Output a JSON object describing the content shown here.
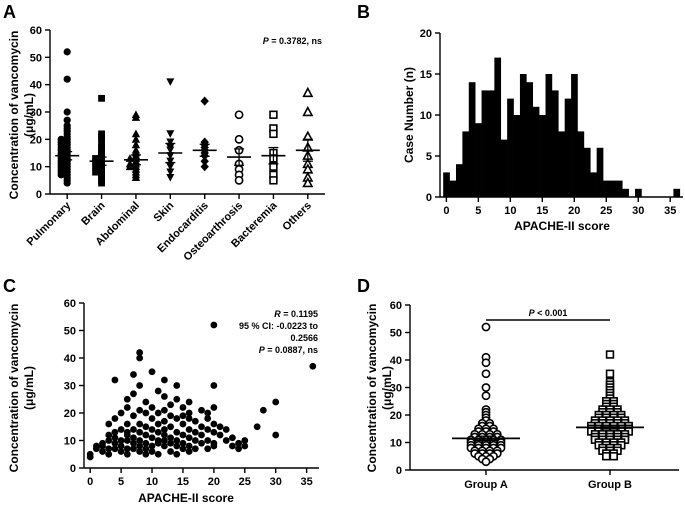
{
  "panel_letters": {
    "a": "A",
    "b": "B",
    "c": "C",
    "d": "D"
  },
  "chart_data": [
    {
      "panel": "A",
      "type": "scatter",
      "subtype": "dot-plot-with-mean-and-sem",
      "ylabel_line1": "Concentration of vancomycin",
      "ylabel_line2": "(μg/mL)",
      "ylim": [
        0,
        60
      ],
      "yticks": [
        0,
        10,
        20,
        30,
        40,
        50,
        60
      ],
      "stat_p": "P",
      "stat_rest": " = 0.3782, ns",
      "categories": [
        "Pulmonary",
        "Brain",
        "Abdominal",
        "Skin",
        "Endocarditis",
        "Osteoarthrosis",
        "Bacteremia",
        "Others"
      ],
      "markers": [
        "circle",
        "square",
        "triangle-up",
        "triangle-down",
        "diamond",
        "circle-open",
        "square-open",
        "triangle-open"
      ],
      "means": [
        14,
        12,
        12.5,
        15,
        16,
        13.5,
        14,
        16
      ],
      "sem": [
        1.5,
        1.5,
        1.8,
        3.5,
        2.2,
        3,
        3,
        4
      ],
      "points": [
        [
          52,
          42,
          30,
          27,
          25,
          24,
          23,
          22,
          21,
          20,
          20,
          19,
          19,
          18,
          18,
          17,
          17,
          16,
          16,
          15,
          15,
          14,
          14,
          13,
          13,
          12,
          12,
          11,
          11,
          10,
          10,
          9,
          9,
          8,
          8,
          7,
          7,
          6,
          5,
          4
        ],
        [
          35,
          22,
          21,
          20,
          18,
          17,
          16,
          15,
          14,
          13,
          13,
          12,
          12,
          11,
          10,
          10,
          9,
          8,
          8,
          7,
          6,
          5,
          4
        ],
        [
          29,
          28,
          22,
          20,
          18,
          16,
          15,
          14,
          13,
          13,
          12,
          11,
          11,
          10,
          10,
          9,
          8,
          7,
          6
        ],
        [
          41,
          22,
          19,
          17,
          16,
          14,
          12,
          10,
          8,
          6
        ],
        [
          34,
          19,
          18,
          17,
          16,
          15,
          14,
          12,
          10
        ],
        [
          29,
          20,
          16,
          11,
          9,
          7,
          5
        ],
        [
          29,
          24,
          22,
          15,
          13,
          10,
          7,
          5
        ],
        [
          37,
          30,
          21,
          17,
          14,
          11,
          9,
          6,
          4
        ]
      ]
    },
    {
      "panel": "B",
      "type": "bar",
      "subtype": "histogram",
      "xlabel": "APACHE-II score",
      "ylabel": "Case Number (n)",
      "xlim": [
        -1,
        37
      ],
      "ylim": [
        0,
        20
      ],
      "xticks": [
        0,
        5,
        10,
        15,
        20,
        25,
        30,
        35
      ],
      "yticks": [
        0,
        5,
        10,
        15,
        20
      ],
      "bins": [
        0,
        1,
        2,
        3,
        4,
        5,
        6,
        7,
        8,
        9,
        10,
        11,
        12,
        13,
        14,
        15,
        16,
        17,
        18,
        19,
        20,
        21,
        22,
        23,
        24,
        25,
        26,
        27,
        28,
        29,
        30,
        31,
        32,
        33,
        34,
        35,
        36
      ],
      "values": [
        3,
        2,
        4,
        8,
        14,
        9,
        13,
        13,
        17,
        7,
        12,
        10,
        15,
        14,
        11,
        10,
        15,
        13,
        8,
        12,
        15,
        8,
        6,
        3,
        6,
        2,
        2,
        2,
        1,
        0,
        1,
        0,
        0,
        0,
        0,
        0,
        1
      ]
    },
    {
      "panel": "C",
      "type": "scatter",
      "xlabel": "APACHE-II score",
      "ylabel_line1": "Concentration of vancomycin",
      "ylabel_line2": "(μg/mL)",
      "xlim": [
        -1,
        37
      ],
      "ylim": [
        0,
        60
      ],
      "xticks": [
        0,
        5,
        10,
        15,
        20,
        25,
        30,
        35
      ],
      "yticks": [
        0,
        10,
        20,
        30,
        40,
        50,
        60
      ],
      "stat_lines": [
        {
          "italic": "R",
          "rest": " = 0.1195"
        },
        {
          "italic": "",
          "rest": "95 % CI: -0.0223 to"
        },
        {
          "italic": "",
          "rest": "0.2566"
        },
        {
          "italic": "P",
          "rest": " = 0.0887, ns"
        }
      ],
      "points": [
        [
          0,
          5
        ],
        [
          0,
          4
        ],
        [
          1,
          7
        ],
        [
          1,
          8
        ],
        [
          2,
          6
        ],
        [
          2,
          9
        ],
        [
          2,
          8
        ],
        [
          3,
          10
        ],
        [
          3,
          7
        ],
        [
          3,
          12
        ],
        [
          3,
          16
        ],
        [
          3,
          5
        ],
        [
          4,
          32
        ],
        [
          4,
          9
        ],
        [
          4,
          11
        ],
        [
          4,
          13
        ],
        [
          4,
          7
        ],
        [
          4,
          18
        ],
        [
          5,
          10
        ],
        [
          5,
          6
        ],
        [
          5,
          14
        ],
        [
          5,
          20
        ],
        [
          5,
          8
        ],
        [
          6,
          22
        ],
        [
          6,
          10
        ],
        [
          6,
          12
        ],
        [
          6,
          7
        ],
        [
          6,
          16
        ],
        [
          6,
          25
        ],
        [
          6,
          5
        ],
        [
          6,
          13
        ],
        [
          7,
          34
        ],
        [
          7,
          9
        ],
        [
          7,
          11
        ],
        [
          7,
          19
        ],
        [
          7,
          7
        ],
        [
          7,
          14
        ],
        [
          7,
          27
        ],
        [
          8,
          42
        ],
        [
          8,
          40
        ],
        [
          8,
          10
        ],
        [
          8,
          13
        ],
        [
          8,
          21
        ],
        [
          8,
          6
        ],
        [
          8,
          16
        ],
        [
          8,
          8
        ],
        [
          8,
          30
        ],
        [
          9,
          20
        ],
        [
          9,
          9
        ],
        [
          9,
          12
        ],
        [
          9,
          15
        ],
        [
          9,
          7
        ],
        [
          9,
          24
        ],
        [
          9,
          5
        ],
        [
          10,
          35
        ],
        [
          10,
          18
        ],
        [
          10,
          11
        ],
        [
          10,
          8
        ],
        [
          10,
          14
        ],
        [
          10,
          22
        ],
        [
          10,
          6
        ],
        [
          11,
          28
        ],
        [
          11,
          10
        ],
        [
          11,
          16
        ],
        [
          11,
          9
        ],
        [
          11,
          13
        ],
        [
          11,
          20
        ],
        [
          11,
          5
        ],
        [
          12,
          32
        ],
        [
          12,
          21
        ],
        [
          12,
          8
        ],
        [
          12,
          12
        ],
        [
          12,
          17
        ],
        [
          12,
          26
        ],
        [
          12,
          10
        ],
        [
          12,
          14
        ],
        [
          13,
          19
        ],
        [
          13,
          11
        ],
        [
          13,
          9
        ],
        [
          13,
          15
        ],
        [
          13,
          6
        ],
        [
          13,
          23
        ],
        [
          14,
          30
        ],
        [
          14,
          13
        ],
        [
          14,
          8
        ],
        [
          14,
          18
        ],
        [
          14,
          10
        ],
        [
          14,
          25
        ],
        [
          14,
          5
        ],
        [
          15,
          22
        ],
        [
          15,
          9
        ],
        [
          15,
          12
        ],
        [
          15,
          16
        ],
        [
          15,
          7
        ],
        [
          15,
          19
        ],
        [
          16,
          24
        ],
        [
          16,
          11
        ],
        [
          16,
          8
        ],
        [
          16,
          14
        ],
        [
          16,
          18
        ],
        [
          16,
          6
        ],
        [
          16,
          20
        ],
        [
          17,
          17
        ],
        [
          17,
          10
        ],
        [
          17,
          13
        ],
        [
          17,
          7
        ],
        [
          18,
          21
        ],
        [
          18,
          12
        ],
        [
          18,
          9
        ],
        [
          18,
          15
        ],
        [
          19,
          20
        ],
        [
          19,
          10
        ],
        [
          19,
          14
        ],
        [
          19,
          7
        ],
        [
          19,
          18
        ],
        [
          20,
          52
        ],
        [
          20,
          30
        ],
        [
          20,
          22
        ],
        [
          20,
          9
        ],
        [
          20,
          13
        ],
        [
          20,
          16
        ],
        [
          20,
          8
        ],
        [
          21,
          12
        ],
        [
          21,
          15
        ],
        [
          22,
          10
        ],
        [
          22,
          14
        ],
        [
          23,
          11
        ],
        [
          23,
          8
        ],
        [
          24,
          7
        ],
        [
          24,
          9
        ],
        [
          25,
          10
        ],
        [
          25,
          8
        ],
        [
          27,
          15
        ],
        [
          28,
          21
        ],
        [
          30,
          24
        ],
        [
          30,
          12
        ],
        [
          36,
          37
        ]
      ]
    },
    {
      "panel": "D",
      "type": "scatter",
      "subtype": "dot-plot-with-mean-and-sem",
      "ylabel_line1": "Concentration of vancomycin",
      "ylabel_line2": "(μg/mL)",
      "ylim": [
        0,
        60
      ],
      "yticks": [
        0,
        10,
        20,
        30,
        40,
        50,
        60
      ],
      "categories": [
        "Group A",
        "Group B"
      ],
      "markers": [
        "circle-open",
        "square-open"
      ],
      "means": [
        11.5,
        15.5
      ],
      "sem": [
        0.8,
        0.6
      ],
      "significance_p": "P",
      "significance_rest": " < 0.001",
      "points": [
        [
          52,
          41,
          39,
          35,
          30,
          27,
          22,
          21,
          20,
          19,
          18,
          17,
          17,
          16,
          16,
          15,
          15,
          15,
          14,
          14,
          14,
          13,
          13,
          13,
          13,
          12,
          12,
          12,
          12,
          11,
          11,
          11,
          11,
          11,
          10,
          10,
          10,
          10,
          10,
          9,
          9,
          9,
          9,
          9,
          8,
          8,
          8,
          8,
          8,
          7,
          7,
          7,
          7,
          6,
          6,
          6,
          6,
          5,
          5,
          5,
          4,
          4,
          3
        ],
        [
          42,
          35,
          32,
          31,
          30,
          29,
          28,
          27,
          26,
          25,
          25,
          24,
          24,
          23,
          23,
          22,
          22,
          22,
          21,
          21,
          21,
          20,
          20,
          20,
          20,
          19,
          19,
          19,
          19,
          18,
          18,
          18,
          18,
          18,
          17,
          17,
          17,
          17,
          17,
          16,
          16,
          16,
          16,
          16,
          16,
          15,
          15,
          15,
          15,
          15,
          15,
          14,
          14,
          14,
          14,
          14,
          14,
          13,
          13,
          13,
          13,
          13,
          12,
          12,
          12,
          12,
          12,
          11,
          11,
          11,
          11,
          11,
          10,
          10,
          10,
          10,
          9,
          9,
          9,
          9,
          8,
          8,
          8,
          7,
          7,
          7,
          6,
          6,
          5,
          5
        ]
      ]
    }
  ]
}
